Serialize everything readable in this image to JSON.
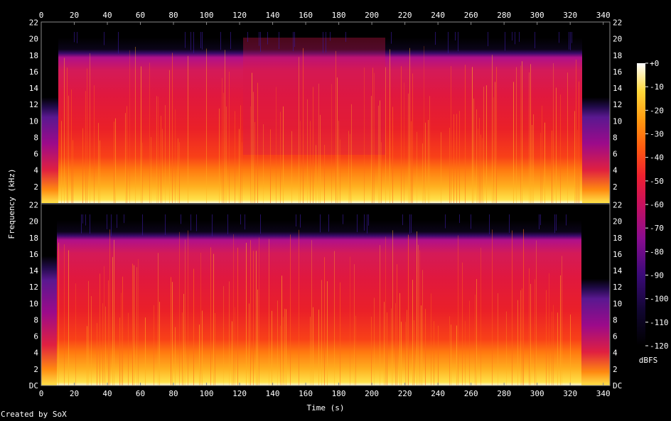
{
  "chart_data": {
    "type": "heatmap",
    "xlabel": "Time (s)",
    "ylabel": "Frequency (kHz)",
    "x_ticks": [
      "0",
      "20",
      "40",
      "60",
      "80",
      "100",
      "120",
      "140",
      "160",
      "180",
      "200",
      "220",
      "240",
      "260",
      "280",
      "300",
      "320",
      "340"
    ],
    "xlim": [
      0,
      344
    ],
    "y_ticks_top": [
      "2",
      "4",
      "6",
      "8",
      "10",
      "12",
      "14",
      "16",
      "18",
      "20",
      "22"
    ],
    "y_ticks_bottom": [
      "DC",
      "2",
      "4",
      "6",
      "8",
      "10",
      "12",
      "14",
      "16",
      "18",
      "20",
      "22"
    ],
    "ylim": [
      0,
      22.05
    ],
    "channels": 2,
    "colorbar": {
      "label": "dBFS",
      "ticks": [
        "+0",
        "-10",
        "-20",
        "-30",
        "-40",
        "-50",
        "-60",
        "-70",
        "-80",
        "-90",
        "-100",
        "-110",
        "-120"
      ],
      "range": [
        -120,
        0
      ]
    },
    "credit": "Created by SoX"
  }
}
